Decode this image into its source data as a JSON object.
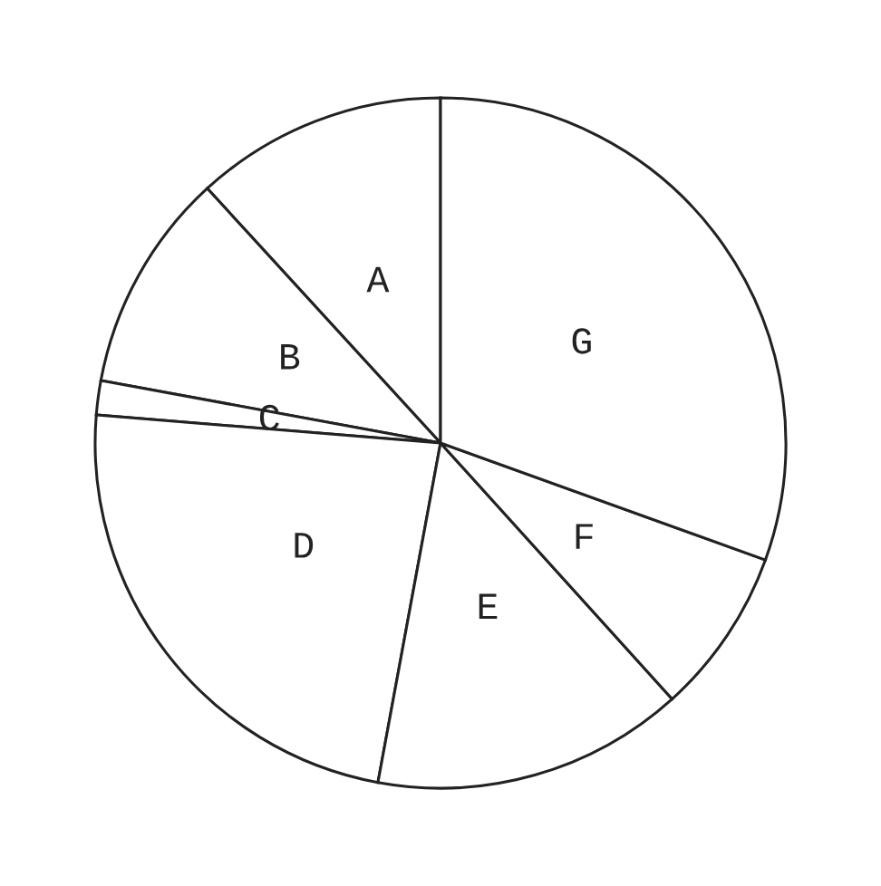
{
  "chart_data": {
    "type": "pie",
    "categories": [
      "A",
      "B",
      "C",
      "D",
      "E",
      "F",
      "G"
    ],
    "values": [
      11.8,
      10.3,
      1.6,
      23.4,
      14.6,
      7.8,
      30.5
    ],
    "colors": [
      "#ffffff",
      "#ffffff",
      "#ffffff",
      "#ffffff",
      "#ffffff",
      "#ffffff",
      "#ffffff"
    ]
  }
}
